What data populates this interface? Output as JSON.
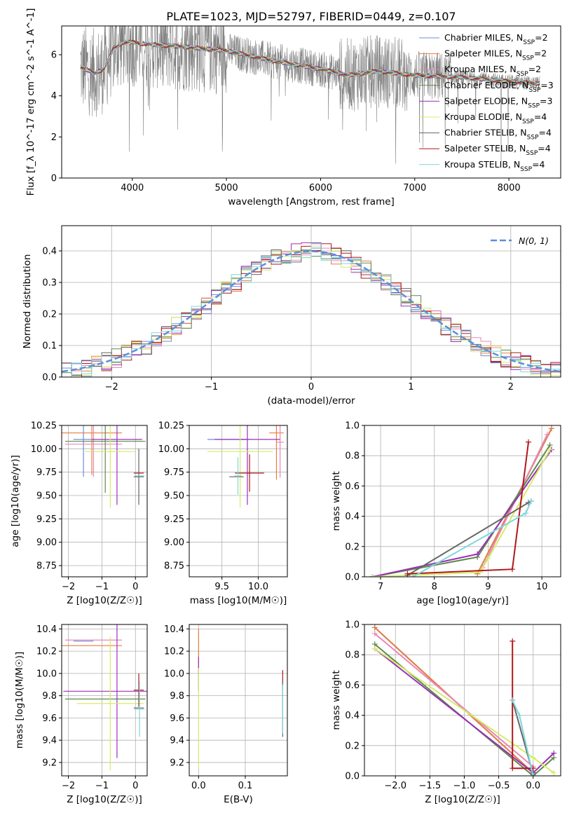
{
  "figure_title": "PLATE=1023, MJD=52797, FIBERID=0449, z=0.107",
  "colors": {
    "chabrier_miles": "#6b8ed6",
    "salpeter_miles": "#e87d3e",
    "kroupa_miles": "#e887b7",
    "chabrier_elodie": "#5c8a4a",
    "salpeter_elodie": "#9b30b8",
    "kroupa_elodie": "#d4ec6a",
    "chabrier_stelib": "#666666",
    "salpeter_stelib": "#b01818",
    "kroupa_stelib": "#7fd6dc",
    "data": "#808080",
    "gaussian": "#5b8fd9"
  },
  "series": [
    {
      "key": "chabrier_miles",
      "legend": "Chabrier MILES, N",
      "sub": "SSP",
      "eq": "=2"
    },
    {
      "key": "salpeter_miles",
      "legend": "Salpeter MILES, N",
      "sub": "SSP",
      "eq": "=2"
    },
    {
      "key": "kroupa_miles",
      "legend": "Kroupa MILES, N",
      "sub": "SSP",
      "eq": "=2"
    },
    {
      "key": "chabrier_elodie",
      "legend": "Chabrier ELODIE, N",
      "sub": "SSP",
      "eq": "=3"
    },
    {
      "key": "salpeter_elodie",
      "legend": "Salpeter ELODIE, N",
      "sub": "SSP",
      "eq": "=3"
    },
    {
      "key": "kroupa_elodie",
      "legend": "Kroupa ELODIE, N",
      "sub": "SSP",
      "eq": "=4"
    },
    {
      "key": "chabrier_stelib",
      "legend": "Chabrier STELIB, N",
      "sub": "SSP",
      "eq": "=4"
    },
    {
      "key": "salpeter_stelib",
      "legend": "Salpeter STELIB, N",
      "sub": "SSP",
      "eq": "=4"
    },
    {
      "key": "kroupa_stelib",
      "legend": "Kroupa STELIB, N",
      "sub": "SSP",
      "eq": "=4"
    }
  ],
  "chart_data": [
    {
      "id": "spectrum",
      "type": "line",
      "title": "PLATE=1023, MJD=52797, FIBERID=0449, z=0.107",
      "xlabel": "wavelength [Angstrom, rest frame]",
      "ylabel": "Flux [f_λ 10^-17 erg cm^-2 s^-1 A^-1]",
      "xlim": [
        3250,
        8550
      ],
      "ylim": [
        0,
        7.4
      ],
      "xticks": [
        4000,
        5000,
        6000,
        7000,
        8000
      ],
      "yticks": [
        0,
        2,
        4,
        6
      ],
      "continuum": [
        [
          3450,
          5.4
        ],
        [
          3600,
          5.1
        ],
        [
          3700,
          5.3
        ],
        [
          3800,
          6.3
        ],
        [
          3900,
          6.6
        ],
        [
          4000,
          6.6
        ],
        [
          4200,
          6.5
        ],
        [
          4500,
          6.4
        ],
        [
          5000,
          6.2
        ],
        [
          5500,
          5.7
        ],
        [
          6000,
          5.3
        ],
        [
          6300,
          5.0
        ],
        [
          6600,
          5.2
        ],
        [
          7000,
          5.0
        ],
        [
          7500,
          4.9
        ],
        [
          8000,
          4.7
        ],
        [
          8300,
          4.6
        ]
      ],
      "grid": false,
      "legend_position": "right"
    },
    {
      "id": "residuals",
      "type": "line",
      "xlabel": "(data-model)/error",
      "ylabel": "Normed distribution",
      "xlim": [
        -2.5,
        2.5
      ],
      "ylim": [
        0,
        0.48
      ],
      "xticks": [
        -2,
        -1,
        0,
        1,
        2
      ],
      "yticks": [
        0.0,
        0.1,
        0.2,
        0.3,
        0.4
      ],
      "gaussian_label": "N(0, 1)",
      "grid": true,
      "legend_position": "top-right"
    },
    {
      "id": "age_vs_Z",
      "type": "scatter",
      "xlabel": "Z [log10(Z/Z☉)]",
      "ylabel": "age  [log10(age/yr)]",
      "xlim": [
        -2.2,
        0.35
      ],
      "ylim": [
        8.63,
        10.25
      ],
      "xticks": [
        -2,
        -1,
        0
      ],
      "yticks": [
        8.75,
        9.0,
        9.25,
        9.5,
        9.75,
        10.0,
        10.25
      ],
      "grid": true,
      "points": [
        {
          "s": "chabrier_miles",
          "x": -1.55,
          "y": 10.1,
          "xe": 0.3,
          "ye": 0.4
        },
        {
          "s": "salpeter_miles",
          "x": -1.3,
          "y": 10.17,
          "xe": 0.9,
          "ye": 0.45
        },
        {
          "s": "kroupa_miles",
          "x": -1.25,
          "y": 10.05,
          "xe": 0.85,
          "ye": 0.35
        },
        {
          "s": "chabrier_elodie",
          "x": -0.9,
          "y": 10.08,
          "xe": 1.2,
          "ye": 0.55
        },
        {
          "s": "salpeter_elodie",
          "x": -0.55,
          "y": 10.1,
          "xe": 0.75,
          "ye": 0.7
        },
        {
          "s": "kroupa_elodie",
          "x": -0.75,
          "y": 9.97,
          "xe": 0.75,
          "ye": 0.6
        },
        {
          "s": "chabrier_stelib",
          "x": 0.1,
          "y": 9.7,
          "xe": 0.15,
          "ye": 0.3
        },
        {
          "s": "salpeter_stelib",
          "x": 0.1,
          "y": 9.74,
          "xe": 0.15,
          "ye": 0.0
        },
        {
          "s": "kroupa_stelib",
          "x": 0.12,
          "y": 9.71,
          "xe": 0.15,
          "ye": 0.0
        }
      ]
    },
    {
      "id": "age_vs_mass",
      "type": "scatter",
      "xlabel": "mass [log10(M/M☉)]",
      "ylabel": "",
      "xlim": [
        9.05,
        10.4
      ],
      "ylim": [
        8.63,
        10.25
      ],
      "xticks": [
        9.5,
        10.0
      ],
      "yticks": [
        8.75,
        9.0,
        9.25,
        9.5,
        9.75,
        10.0,
        10.25
      ],
      "grid": true,
      "points": [
        {
          "s": "chabrier_miles",
          "x": 9.6,
          "y": 10.1,
          "xe": 0.3,
          "ye": 0.0
        },
        {
          "s": "salpeter_miles",
          "x": 10.25,
          "y": 10.17,
          "xe": 0.1,
          "ye": 0.5
        },
        {
          "s": "kroupa_miles",
          "x": 10.3,
          "y": 10.07,
          "xe": 0.05,
          "ye": 0.38
        },
        {
          "s": "chabrier_elodie",
          "x": 9.78,
          "y": 10.1,
          "xe": 0.05,
          "ye": 0.0
        },
        {
          "s": "salpeter_elodie",
          "x": 9.85,
          "y": 10.1,
          "xe": 0.45,
          "ye": 0.7
        },
        {
          "s": "kroupa_elodie",
          "x": 9.75,
          "y": 9.97,
          "xe": 0.45,
          "ye": 0.6
        },
        {
          "s": "chabrier_stelib",
          "x": 9.7,
          "y": 9.7,
          "xe": 0.1,
          "ye": 0.0
        },
        {
          "s": "salpeter_stelib",
          "x": 9.88,
          "y": 9.74,
          "xe": 0.2,
          "ye": 0.2
        },
        {
          "s": "kroupa_stelib",
          "x": 9.72,
          "y": 9.71,
          "xe": 0.05,
          "ye": 0.2
        }
      ]
    },
    {
      "id": "mass_weight_vs_age",
      "type": "line",
      "xlabel": "age  [log10(age/yr)]",
      "ylabel": "mass weight",
      "xlim": [
        6.7,
        10.35
      ],
      "ylim": [
        0,
        1.0
      ],
      "xticks": [
        7,
        8,
        9,
        10
      ],
      "yticks": [
        0.0,
        0.2,
        0.4,
        0.6,
        0.8,
        1.0
      ],
      "grid": true,
      "lines": [
        {
          "s": "chabrier_miles",
          "pts": [
            [
              8.8,
              0.02
            ],
            [
              10.18,
              0.98
            ]
          ]
        },
        {
          "s": "salpeter_miles",
          "pts": [
            [
              8.8,
              0.02
            ],
            [
              10.18,
              0.98
            ]
          ]
        },
        {
          "s": "kroupa_miles",
          "pts": [
            [
              8.9,
              0.06
            ],
            [
              10.1,
              0.94
            ]
          ]
        },
        {
          "s": "chabrier_elodie",
          "pts": [
            [
              6.85,
              0.0
            ],
            [
              8.8,
              0.13
            ],
            [
              10.15,
              0.87
            ]
          ]
        },
        {
          "s": "salpeter_elodie",
          "pts": [
            [
              6.85,
              0.0
            ],
            [
              8.8,
              0.15
            ],
            [
              10.18,
              0.84
            ]
          ]
        },
        {
          "s": "kroupa_elodie",
          "pts": [
            [
              6.85,
              0.0
            ],
            [
              8.85,
              0.03
            ],
            [
              9.0,
              0.12
            ],
            [
              10.15,
              0.84
            ]
          ]
        },
        {
          "s": "chabrier_stelib",
          "pts": [
            [
              7.5,
              0.01
            ],
            [
              9.75,
              0.49
            ],
            [
              9.8,
              0.5
            ]
          ]
        },
        {
          "s": "salpeter_stelib",
          "pts": [
            [
              7.5,
              0.02
            ],
            [
              9.45,
              0.05
            ],
            [
              9.75,
              0.89
            ]
          ]
        },
        {
          "s": "kroupa_stelib",
          "pts": [
            [
              7.6,
              0.0
            ],
            [
              9.7,
              0.42
            ],
            [
              9.8,
              0.5
            ]
          ]
        }
      ]
    },
    {
      "id": "mass_vs_Z",
      "type": "scatter",
      "xlabel": "Z [log10(Z/Z☉)]",
      "ylabel": "mass [log10(M/M☉)]",
      "xlim": [
        -2.2,
        0.35
      ],
      "ylim": [
        9.08,
        10.44
      ],
      "xticks": [
        -2,
        -1,
        0
      ],
      "yticks": [
        9.2,
        9.4,
        9.6,
        9.8,
        10.0,
        10.2,
        10.4
      ],
      "grid": true,
      "points": [
        {
          "s": "chabrier_miles",
          "x": -1.55,
          "y": 10.29,
          "xe": 0.3,
          "ye": 0.0
        },
        {
          "s": "salpeter_miles",
          "x": -1.3,
          "y": 10.25,
          "xe": 0.9,
          "ye": 0.0
        },
        {
          "s": "kroupa_miles",
          "x": -1.25,
          "y": 10.3,
          "xe": 0.85,
          "ye": 0.0
        },
        {
          "s": "chabrier_elodie",
          "x": -0.9,
          "y": 9.77,
          "xe": 1.2,
          "ye": 0.0
        },
        {
          "s": "salpeter_elodie",
          "x": -0.55,
          "y": 9.84,
          "xe": 1.6,
          "ye": 0.6
        },
        {
          "s": "kroupa_elodie",
          "x": -0.75,
          "y": 9.73,
          "xe": 1.0,
          "ye": 0.6
        },
        {
          "s": "chabrier_stelib",
          "x": 0.1,
          "y": 9.69,
          "xe": 0.15,
          "ye": 0.0
        },
        {
          "s": "salpeter_stelib",
          "x": 0.1,
          "y": 9.85,
          "xe": 0.15,
          "ye": 0.15
        },
        {
          "s": "kroupa_stelib",
          "x": 0.12,
          "y": 9.68,
          "xe": 0.15,
          "ye": 0.25
        }
      ]
    },
    {
      "id": "mass_vs_ebv",
      "type": "scatter",
      "xlabel": "E(B-V)",
      "ylabel": "",
      "xlim": [
        -0.02,
        0.19
      ],
      "ylim": [
        9.08,
        10.44
      ],
      "xticks": [
        0.0,
        0.1
      ],
      "yticks": [
        9.2,
        9.4,
        9.6,
        9.8,
        10.0,
        10.2,
        10.4
      ],
      "grid": true,
      "points": [
        {
          "s": "salpeter_miles",
          "x": 0.0,
          "y": 10.2,
          "xe": 0,
          "ye": 0.2
        },
        {
          "s": "salpeter_elodie",
          "x": 0.0,
          "y": 10.0,
          "xe": 0,
          "ye": 0.15
        },
        {
          "s": "kroupa_elodie",
          "x": 0.0,
          "y": 9.6,
          "xe": 0,
          "ye": 0.45
        },
        {
          "s": "salpeter_stelib",
          "x": 0.18,
          "y": 9.95,
          "xe": 0,
          "ye": 0.08
        },
        {
          "s": "chabrier_stelib",
          "x": 0.18,
          "y": 9.68,
          "xe": 0,
          "ye": 0.25
        },
        {
          "s": "kroupa_stelib",
          "x": 0.18,
          "y": 9.68,
          "xe": 0,
          "ye": 0.22
        }
      ]
    },
    {
      "id": "mass_weight_vs_Z",
      "type": "line",
      "xlabel": "Z [log10(Z/Z☉)]",
      "ylabel": "mass weight",
      "xlim": [
        -2.45,
        0.4
      ],
      "ylim": [
        0,
        1.0
      ],
      "xticks": [
        -2.0,
        -1.5,
        -1.0,
        -0.5,
        0.0
      ],
      "yticks": [
        0.0,
        0.2,
        0.4,
        0.6,
        0.8,
        1.0
      ],
      "grid": true,
      "lines": [
        {
          "s": "chabrier_miles",
          "pts": [
            [
              -2.3,
              0.98
            ],
            [
              0.0,
              0.02
            ]
          ]
        },
        {
          "s": "salpeter_miles",
          "pts": [
            [
              -2.3,
              0.98
            ],
            [
              0.0,
              0.02
            ]
          ]
        },
        {
          "s": "kroupa_miles",
          "pts": [
            [
              -2.3,
              0.94
            ],
            [
              0.0,
              0.06
            ]
          ]
        },
        {
          "s": "chabrier_elodie",
          "pts": [
            [
              -2.3,
              0.87
            ],
            [
              0.0,
              0.0
            ],
            [
              0.3,
              0.12
            ]
          ]
        },
        {
          "s": "salpeter_elodie",
          "pts": [
            [
              -2.3,
              0.84
            ],
            [
              0.0,
              0.02
            ],
            [
              0.3,
              0.15
            ]
          ]
        },
        {
          "s": "kroupa_elodie",
          "pts": [
            [
              -2.3,
              0.84
            ],
            [
              0.0,
              0.12
            ],
            [
              0.3,
              0.02
            ]
          ]
        },
        {
          "s": "chabrier_stelib",
          "pts": [
            [
              -0.3,
              0.5
            ],
            [
              0.0,
              0.01
            ]
          ]
        },
        {
          "s": "salpeter_stelib",
          "pts": [
            [
              -0.3,
              0.89
            ],
            [
              -0.3,
              0.05
            ],
            [
              0.0,
              0.05
            ]
          ]
        },
        {
          "s": "kroupa_stelib",
          "pts": [
            [
              -0.3,
              0.5
            ],
            [
              -0.2,
              0.4
            ],
            [
              0.0,
              0.0
            ]
          ]
        }
      ]
    }
  ]
}
